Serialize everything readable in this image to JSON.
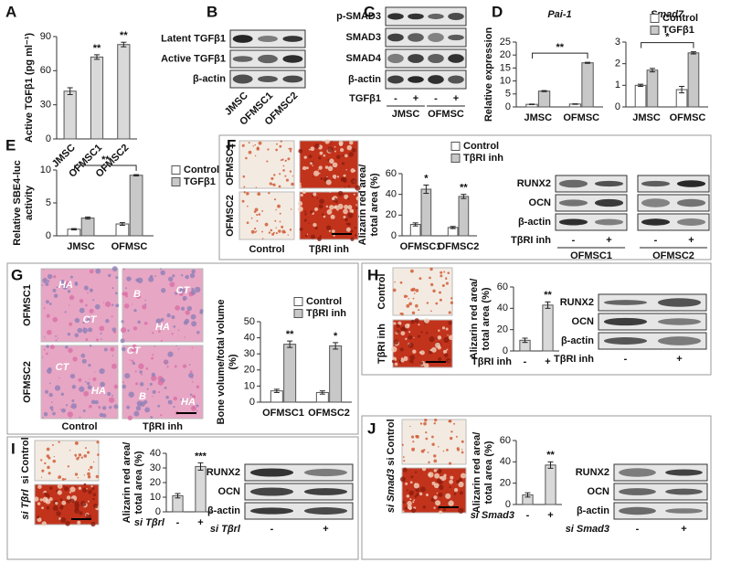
{
  "panel_letters": [
    "A",
    "B",
    "C",
    "D",
    "E",
    "F",
    "G",
    "H",
    "I",
    "J"
  ],
  "chart_data": [
    {
      "type": "bar",
      "ylabel": [
        "Active TGFβ1 (pg ml⁻¹)"
      ],
      "categories": [
        "JMSC",
        "OFMSC1",
        "OFMSC2"
      ],
      "values": [
        42,
        72,
        83
      ],
      "errors": [
        3,
        2,
        2
      ],
      "color": "#d9d9d9",
      "significance": [
        null,
        "**",
        "**"
      ],
      "ylim": [
        0,
        90
      ],
      "yticks": [
        0,
        30,
        60,
        90
      ]
    },
    {
      "type": "bar",
      "title": "Pai-1",
      "ylabel": [
        "Relative expression"
      ],
      "categories": [
        "JMSC",
        "OFMSC"
      ],
      "series": [
        {
          "color": "#ffffff",
          "values": [
            1.0,
            1.1
          ],
          "errors": [
            0.1,
            0.1
          ]
        },
        {
          "color": "#c8c8c8",
          "values": [
            6.1,
            17
          ],
          "errors": [
            0.2,
            0.2
          ]
        }
      ],
      "bracket": "**",
      "ylim": [
        0,
        25
      ],
      "yticks": [
        0,
        5,
        10,
        15,
        20,
        25
      ]
    },
    {
      "type": "bar",
      "title": "Smad7",
      "categories": [
        "JMSC",
        "OFMSC"
      ],
      "series": [
        {
          "name": "Control",
          "color": "#ffffff",
          "values": [
            1.0,
            0.8
          ],
          "errors": [
            0.05,
            0.15
          ]
        },
        {
          "name": "TGFβ1",
          "color": "#c8c8c8",
          "values": [
            1.7,
            2.5
          ],
          "errors": [
            0.08,
            0.05
          ]
        }
      ],
      "bracket": "*",
      "legend": true,
      "ylim": [
        0,
        3
      ],
      "yticks": [
        0,
        1,
        2,
        3
      ]
    },
    {
      "type": "bar",
      "ylabel": [
        "Relative SBE4-luc",
        "activity"
      ],
      "categories": [
        "JMSC",
        "OFMSC"
      ],
      "series": [
        {
          "name": "Control",
          "color": "#ffffff",
          "values": [
            1.0,
            1.8
          ],
          "errors": [
            0.1,
            0.2
          ]
        },
        {
          "name": "TGFβ1",
          "color": "#c8c8c8",
          "values": [
            2.7,
            9.2
          ],
          "errors": [
            0.15,
            0.1
          ]
        }
      ],
      "bracket": "**",
      "legend": true,
      "ylim": [
        0,
        10
      ],
      "yticks": [
        0,
        5,
        10
      ]
    },
    {
      "type": "bar",
      "ylabel": [
        "Alizarin red area/",
        "total area (%)"
      ],
      "categories": [
        "OFMSC1",
        "OFMSC2"
      ],
      "series": [
        {
          "name": "Control",
          "color": "#ffffff",
          "values": [
            11,
            8
          ],
          "errors": [
            1.5,
            1
          ]
        },
        {
          "name": "TβRI inh",
          "color": "#c8c8c8",
          "values": [
            45,
            38
          ],
          "errors": [
            4,
            2
          ]
        }
      ],
      "significance_series": 1,
      "significance": [
        "*",
        "**"
      ],
      "legend": true,
      "ylim": [
        0,
        60
      ],
      "yticks": [
        0,
        20,
        40,
        60
      ]
    },
    {
      "type": "bar",
      "ylabel": [
        "Bone volume/total volume",
        "(%)"
      ],
      "categories": [
        "OFMSC1",
        "OFMSC2"
      ],
      "series": [
        {
          "name": "Control",
          "color": "#ffffff",
          "values": [
            7,
            6
          ],
          "errors": [
            1,
            1
          ]
        },
        {
          "name": "TβRI inh",
          "color": "#c8c8c8",
          "values": [
            36,
            35
          ],
          "errors": [
            2,
            2
          ]
        }
      ],
      "significance": [
        "**",
        "*"
      ],
      "legend": true,
      "ylim": [
        0,
        50
      ],
      "yticks": [
        0,
        10,
        20,
        30,
        40,
        50
      ]
    },
    {
      "type": "bar",
      "ylabel": [
        "Alizarin red area/",
        "total area (%)"
      ],
      "xlabel": "TβRI inh",
      "categories": [
        "-",
        "+"
      ],
      "values": [
        10,
        43
      ],
      "errors": [
        2,
        3
      ],
      "color": "#d9d9d9",
      "significance": [
        null,
        "**"
      ],
      "ylim": [
        0,
        60
      ],
      "yticks": [
        0,
        20,
        40,
        60
      ]
    },
    {
      "type": "bar",
      "ylabel": [
        "Alizarin red area/",
        "total area (%)"
      ],
      "xlabel": "si Tβrl",
      "categories": [
        "-",
        "+"
      ],
      "values": [
        11,
        31
      ],
      "errors": [
        1.5,
        2.5
      ],
      "color": "#d9d9d9",
      "significance": [
        null,
        "***"
      ],
      "ylim": [
        0,
        40
      ],
      "yticks": [
        0,
        10,
        20,
        30,
        40
      ]
    },
    {
      "type": "bar",
      "ylabel": [
        "Alizarin red area/",
        "total area (%)"
      ],
      "xlabel": "si Smad3",
      "categories": [
        "-",
        "+"
      ],
      "values": [
        9,
        37
      ],
      "errors": [
        2,
        3
      ],
      "color": "#d9d9d9",
      "significance": [
        null,
        "**"
      ],
      "ylim": [
        0,
        60
      ],
      "yticks": [
        0,
        20,
        40,
        60
      ]
    }
  ],
  "blots": {
    "B": {
      "rows": [
        "Latent TGFβ1",
        "Active TGFβ1",
        "β-actin"
      ],
      "lanes": [
        "JMSC",
        "OFMSC1",
        "OFMSC2"
      ]
    },
    "C": {
      "rows": [
        "p-SMAD3",
        "SMAD3",
        "SMAD4",
        "β-actin"
      ],
      "condition": "TGFβ1",
      "signs": [
        "-",
        "+",
        "-",
        "+"
      ],
      "groups": [
        "JMSC",
        "OFMSC"
      ]
    },
    "F": {
      "rows": [
        "RUNX2",
        "OCN",
        "β-actin"
      ],
      "condition": "TβRI inh",
      "signs": [
        "-",
        "+",
        "-",
        "+"
      ],
      "groups": [
        "OFMSC1",
        "OFMSC2"
      ]
    },
    "H": {
      "rows": [
        "RUNX2",
        "OCN",
        "β-actin"
      ],
      "condition": "TβRI inh",
      "signs": [
        "-",
        "+"
      ]
    },
    "I": {
      "rows": [
        "RUNX2",
        "OCN",
        "β-actin"
      ],
      "condition": "si Tβrl",
      "signs": [
        "-",
        "+"
      ]
    },
    "J": {
      "rows": [
        "RUNX2",
        "OCN",
        "β-actin"
      ],
      "condition": "si Smad3",
      "signs": [
        "-",
        "+"
      ]
    }
  },
  "images": {
    "F": {
      "rows": [
        "OFMSC1",
        "OFMSC2"
      ],
      "columns": [
        "Control",
        "TβRI inh"
      ]
    },
    "G": {
      "rows": [
        "OFMSC1",
        "OFMSC2"
      ],
      "columns": [
        "Control",
        "TβRI inh"
      ],
      "labels": [
        "HA",
        "CT",
        "B",
        "CT",
        "HA",
        "CT",
        "HA",
        "CT",
        "B",
        "HA"
      ]
    },
    "H": {
      "rows": [
        "Control",
        "TβRI inh"
      ]
    },
    "I": {
      "rows": [
        "si Control",
        "si Tβrl"
      ]
    },
    "J": {
      "rows": [
        "si Control",
        "si Smad3"
      ]
    }
  }
}
